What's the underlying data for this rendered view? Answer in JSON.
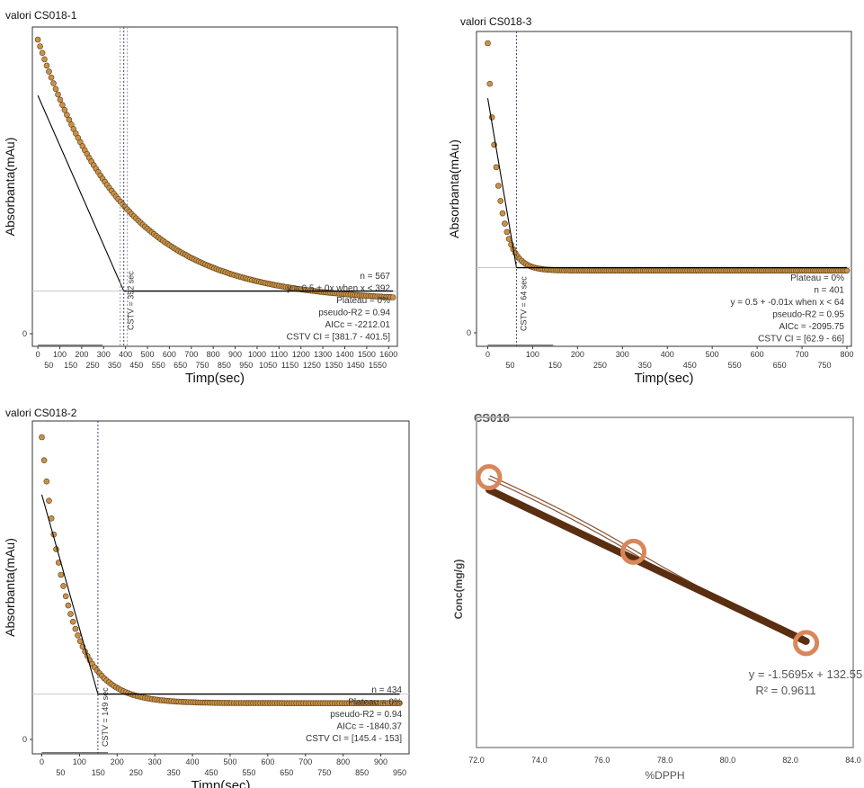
{
  "chart_data": [
    {
      "id": "cs018-1",
      "type": "scatter",
      "title": "valori CS018-1",
      "xlabel": "Timp(sec)",
      "ylabel": "Absorbanta(mAu)",
      "xlim": [
        -25,
        1640
      ],
      "xticks_top": [
        "0",
        "100",
        "200",
        "300",
        "400",
        "500",
        "600",
        "700",
        "800",
        "900",
        "1000",
        "1100",
        "1200",
        "1300",
        "1400",
        "1500",
        "1600"
      ],
      "xticks_bottom": [
        "50",
        "150",
        "250",
        "350",
        "450",
        "550",
        "650",
        "750",
        "850",
        "950",
        "1050",
        "1150",
        "1250",
        "1350",
        "1450",
        "1550"
      ],
      "ytick": "0",
      "cstv_label": "CSTV = 392 sec",
      "cstv_x": 392,
      "stats": [
        "n = 567",
        "y = 0.5 + 0x when x < 392",
        "Plateau = 0%",
        "pseudo-R2 = 0.94",
        "AICc = -2212.01",
        "CSTV CI = [381.7 - 401.5]"
      ],
      "curve": {
        "y0": 1.0,
        "plateau": 0.11,
        "tau": 390,
        "xmax": 1620
      },
      "fit_line": {
        "x": [
          0,
          392
        ],
        "y": [
          0.81,
          0.145
        ]
      },
      "plateau_line": {
        "x": [
          392,
          1620
        ],
        "y": 0.145
      }
    },
    {
      "id": "cs018-3",
      "type": "scatter",
      "title": "valori CS018-3",
      "xlabel": "Timp(sec)",
      "ylabel": "Absorbanta(mAu)",
      "xlim": [
        -25,
        810
      ],
      "xticks_top": [
        "0",
        "100",
        "200",
        "300",
        "400",
        "500",
        "600",
        "700",
        "800"
      ],
      "xticks_bottom": [
        "50",
        "150",
        "250",
        "350",
        "450",
        "550",
        "650",
        "750"
      ],
      "ytick": "0",
      "cstv_label": "CSTV = 64 sec",
      "cstv_x": 64,
      "stats": [
        "Plateau = 0%",
        "n = 401",
        "y = 0.5 + -0.01x when x < 64",
        "pseudo-R2 = 0.95",
        "AICc = -2095.75",
        "CSTV CI = [62.9 - 66]"
      ],
      "curve": {
        "y0": 1.0,
        "plateau": 0.215,
        "tau": 24,
        "xmax": 800
      },
      "fit_line": {
        "x": [
          0,
          64
        ],
        "y": [
          0.81,
          0.225
        ]
      },
      "plateau_line": {
        "x": [
          64,
          800
        ],
        "y": 0.225
      }
    },
    {
      "id": "cs018-2",
      "type": "scatter",
      "title": "valori CS018-2",
      "xlabel": "Timp(sec)",
      "ylabel": "Absorbanta(mAu)",
      "xlim": [
        -25,
        975
      ],
      "xticks_top": [
        "0",
        "100",
        "200",
        "300",
        "400",
        "500",
        "600",
        "700",
        "800",
        "900"
      ],
      "xticks_bottom": [
        "50",
        "150",
        "250",
        "350",
        "450",
        "550",
        "650",
        "750",
        "850",
        "950"
      ],
      "ytick": "0",
      "cstv_label": "CSTV = 149 sec",
      "cstv_x": 149,
      "stats": [
        "n = 434",
        "Plateau = 0%",
        "pseudo-R2 = 0.94",
        "AICc = -1840.37",
        "CSTV CI = [145.4 - 153]"
      ],
      "curve": {
        "y0": 1.0,
        "plateau": 0.12,
        "tau": 70,
        "xmax": 950
      },
      "fit_line": {
        "x": [
          0,
          149
        ],
        "y": [
          0.81,
          0.15
        ]
      },
      "plateau_line": {
        "x": [
          149,
          950
        ],
        "y": 0.15
      }
    },
    {
      "id": "cs018-calibration",
      "type": "scatter",
      "title": "CS018",
      "xlabel": "%DPPH",
      "ylabel": "Conc(mg/g)",
      "xlim": [
        72.0,
        84.0
      ],
      "xticks": [
        "72.0",
        "74.0",
        "76.0",
        "78.0",
        "80.0",
        "82.0",
        "84.0"
      ],
      "x": [
        72.4,
        77.0,
        82.5
      ],
      "y": [
        19.0,
        11.9,
        3.2
      ],
      "ylim": [
        -6.5,
        23.5
      ],
      "trendline": {
        "slope": -1.5695,
        "intercept": 132.55,
        "x_range": [
          72.4,
          82.5
        ]
      },
      "equation": "y = -1.5695x + 132.55",
      "r2": "R² = 0.9611",
      "colors": {
        "marker": "#d9875a",
        "trend": "#5a2e10",
        "smooth": "#8a5535"
      }
    }
  ],
  "colors": {
    "point_fill": "#c8924a",
    "point_stroke": "#5c3b12",
    "line": "#000000",
    "cstv_line": "#444477",
    "grid_line": "#c8c8c8"
  }
}
